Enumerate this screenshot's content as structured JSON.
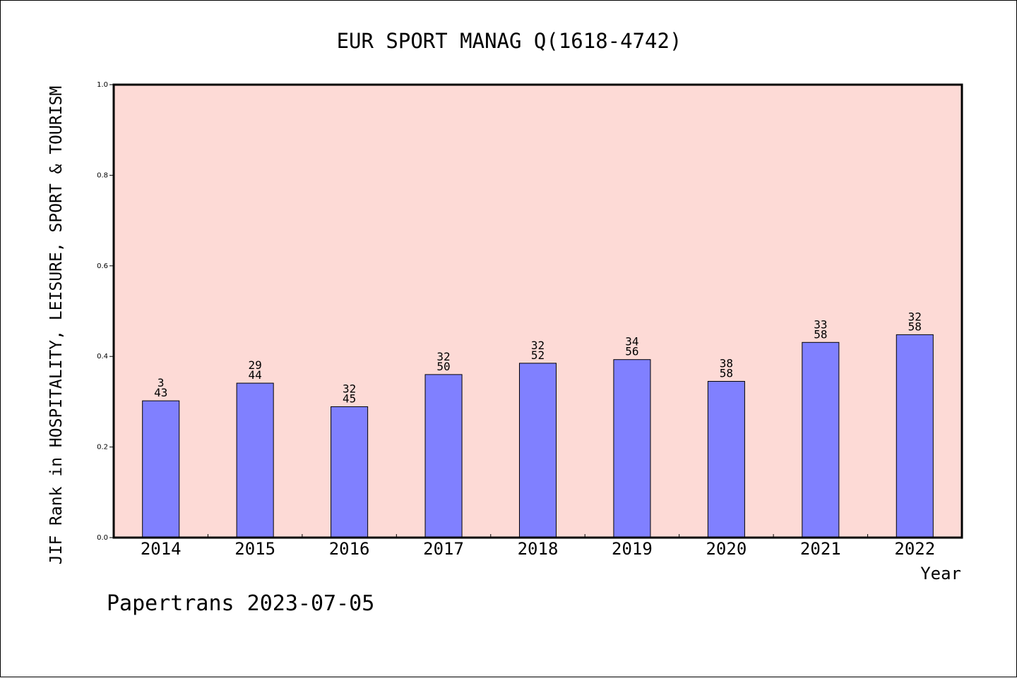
{
  "chart_data": {
    "type": "bar",
    "title": "EUR SPORT MANAG Q(1618-4742)",
    "xlabel": "Year",
    "ylabel": "JIF Rank in HOSPITALITY, LEISURE, SPORT & TOURISM",
    "ylim": [
      0,
      1.0
    ],
    "yticks": [
      "0.0",
      "0.2",
      "0.4",
      "0.6",
      "0.8",
      "1.0"
    ],
    "grid": false,
    "categories": [
      "2014",
      "2015",
      "2016",
      "2017",
      "2018",
      "2019",
      "2020",
      "2021",
      "2022"
    ],
    "values": [
      0.302,
      0.341,
      0.289,
      0.36,
      0.385,
      0.393,
      0.345,
      0.431,
      0.448
    ],
    "annotations": [
      {
        "rank": "3",
        "total": "43"
      },
      {
        "rank": "29",
        "total": "44"
      },
      {
        "rank": "32",
        "total": "45"
      },
      {
        "rank": "32",
        "total": "50"
      },
      {
        "rank": "32",
        "total": "52"
      },
      {
        "rank": "34",
        "total": "56"
      },
      {
        "rank": "38",
        "total": "58"
      },
      {
        "rank": "33",
        "total": "58"
      },
      {
        "rank": "32",
        "total": "58"
      }
    ],
    "colors": {
      "plot_background": "#fddad6",
      "bar_fill": "#8080ff",
      "bar_stroke": "#000000",
      "axis": "#000000"
    }
  },
  "footer": {
    "watermark": "Papertrans 2023-07-05"
  }
}
